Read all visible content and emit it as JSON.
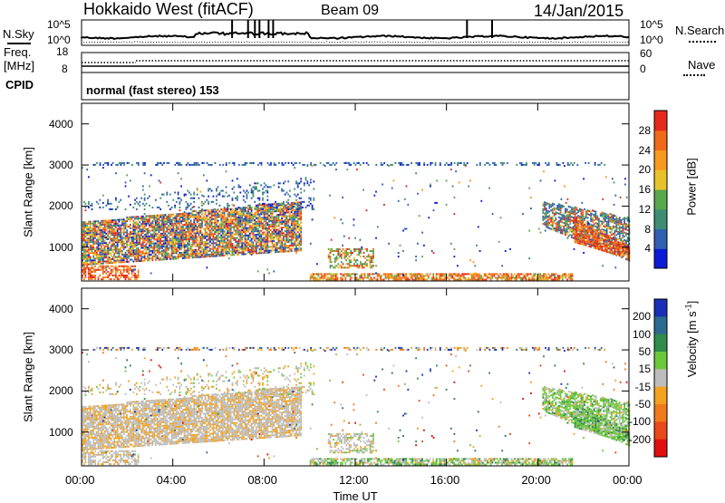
{
  "header": {
    "station": "Hokkaido West (fitACF)",
    "beam": "Beam 09",
    "date": "14/Jan/2015"
  },
  "noise_panel": {
    "left_label": "N.Sky",
    "right_label": "N.Search",
    "left_ticks": [
      "10^5",
      "10^0"
    ],
    "right_ticks": [
      "10^5",
      "10^0"
    ],
    "nsky_spikes_hours": [
      6.6,
      7.3,
      7.6,
      7.8,
      8.2,
      8.4,
      16.9,
      18.0
    ]
  },
  "freq_panel": {
    "left_label_line1": "Freq.",
    "left_label_line2": "[MHz]",
    "left_ticks": [
      "18",
      "8"
    ],
    "right_label": "Nave",
    "right_ticks": [
      "60",
      "0"
    ]
  },
  "cpid_panel": {
    "label": "CPID",
    "program": "normal (fast stereo) 153"
  },
  "chart_data": [
    {
      "type": "heatmap",
      "quantity": "Power",
      "xlabel": "",
      "ylabel": "Slant Range [km]",
      "x_range_hours": [
        0,
        24
      ],
      "y_range_km": [
        180,
        4500
      ],
      "y_ticks": [
        "1000",
        "2000",
        "3000",
        "4000"
      ],
      "colorbar_label": "Power [dB]",
      "colorbar_ticks": [
        "4",
        "8",
        "12",
        "16",
        "20",
        "24",
        "28"
      ],
      "colorbar_range": [
        0,
        32
      ],
      "colors": [
        "#0a1bd6",
        "#2f5fb0",
        "#3f8c72",
        "#58a84c",
        "#e7c22a",
        "#f59a1e",
        "#f06a1a",
        "#e52a1a"
      ]
    },
    {
      "type": "heatmap",
      "quantity": "Velocity",
      "xlabel": "Time UT",
      "ylabel": "Slant Range [km]",
      "x_range_hours": [
        0,
        24
      ],
      "y_range_km": [
        180,
        4500
      ],
      "y_ticks": [
        "1000",
        "2000",
        "3000",
        "4000"
      ],
      "x_ticks": [
        "00:00",
        "04:00",
        "08:00",
        "12:00",
        "16:00",
        "20:00",
        "00:00"
      ],
      "colorbar_label": "Velocity [m s^-1]",
      "colorbar_ticks": [
        "200",
        "100",
        "50",
        "15",
        "-15",
        "-50",
        "-100",
        "-200"
      ],
      "colors": [
        "#1a2fb8",
        "#2d6a8f",
        "#2f8c4a",
        "#6cc83a",
        "#bdbdbd",
        "#f2a21e",
        "#f07a1a",
        "#e8481a",
        "#e01010"
      ]
    }
  ]
}
